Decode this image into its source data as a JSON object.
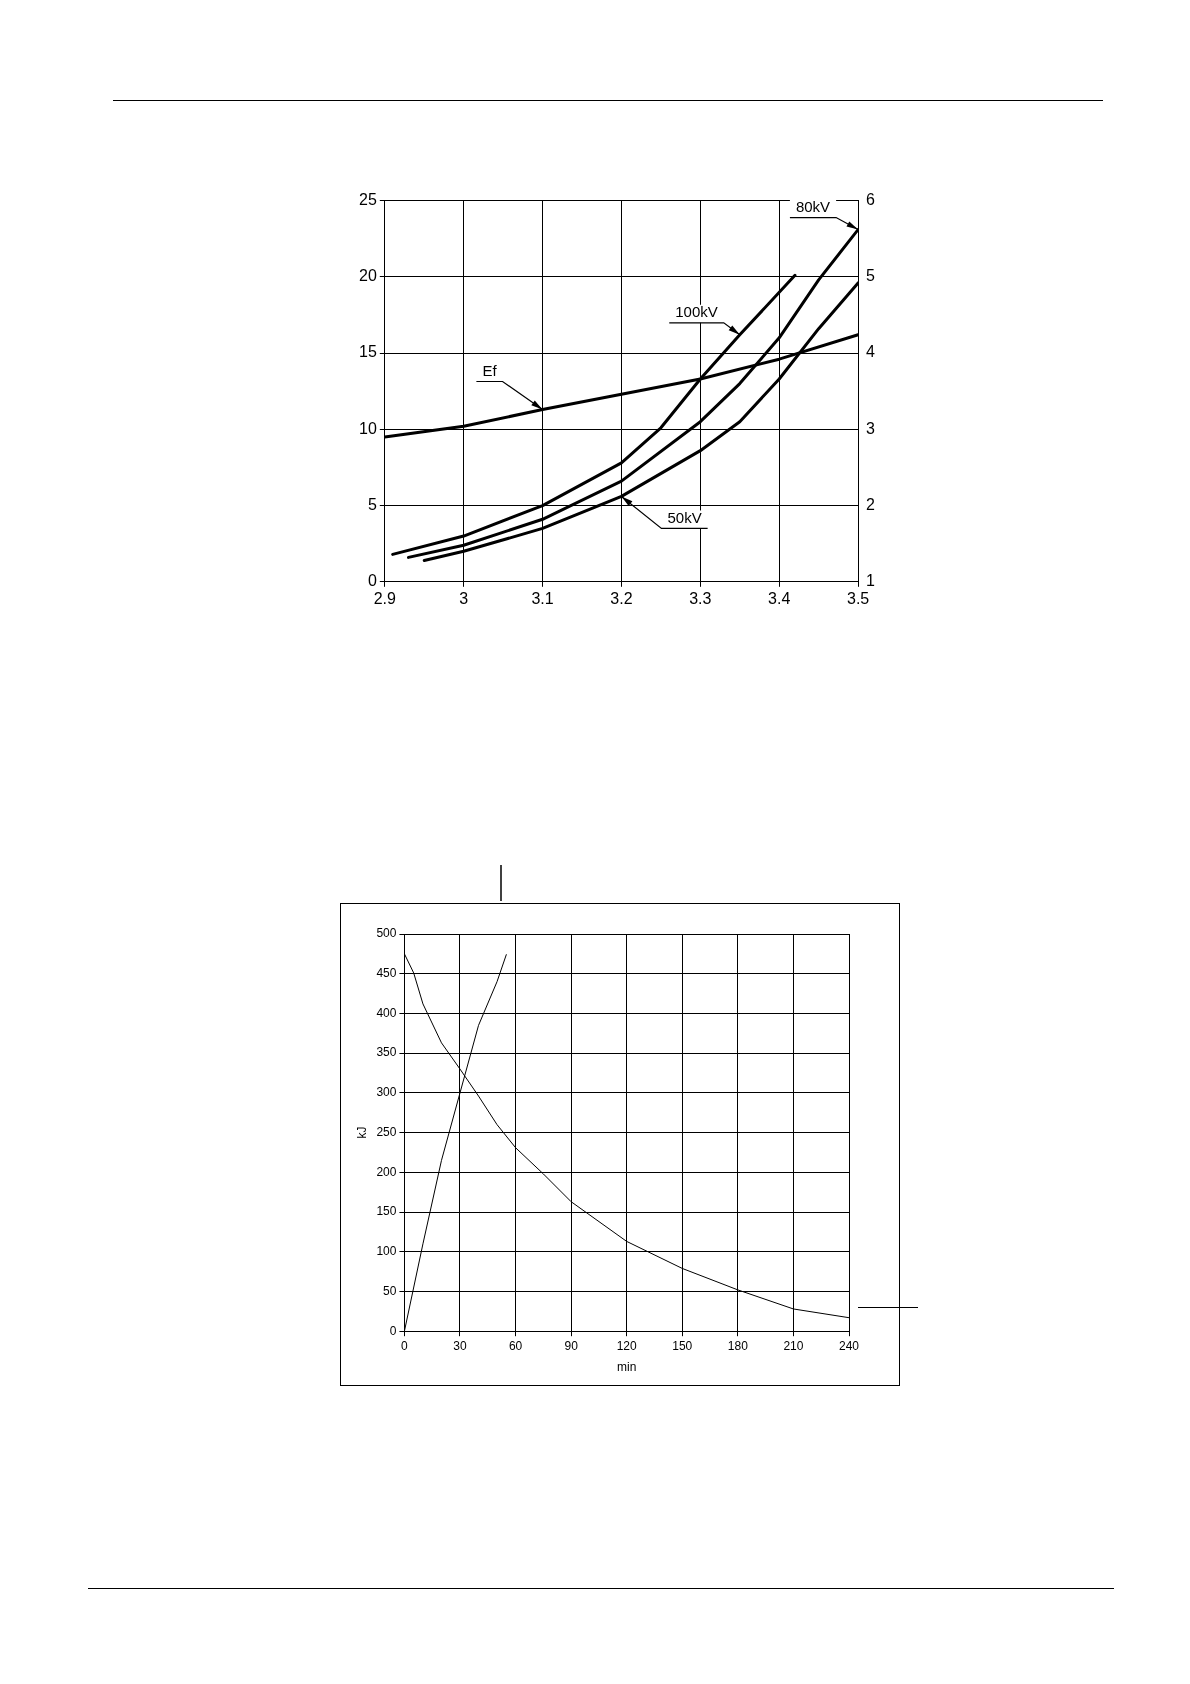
{
  "chart_data": [
    {
      "type": "line",
      "xlim": [
        2.9,
        3.5
      ],
      "xticks": [
        2.9,
        3.0,
        3.1,
        3.2,
        3.3,
        3.4,
        3.5
      ],
      "ylim": [
        0,
        25
      ],
      "yticks": [
        0,
        5,
        10,
        15,
        20,
        25
      ],
      "y2lim": [
        1,
        6
      ],
      "y2ticks": [
        1,
        2,
        3,
        4,
        5,
        6
      ],
      "grid": true,
      "legend": false,
      "marker": "none",
      "line_style": "solid",
      "series": [
        {
          "name": "Ef",
          "color": "#000000",
          "x": [
            2.9,
            3.0,
            3.1,
            3.2,
            3.3,
            3.4,
            3.5
          ],
          "values": [
            9.5,
            10.2,
            11.3,
            12.3,
            13.3,
            14.6,
            16.2
          ]
        },
        {
          "name": "100kV",
          "color": "#000000",
          "x": [
            2.91,
            3.0,
            3.1,
            3.2,
            3.25,
            3.3,
            3.35,
            3.42
          ],
          "values": [
            1.8,
            3.0,
            5.0,
            7.8,
            10.1,
            13.3,
            16.2,
            20.1
          ]
        },
        {
          "name": "80kV",
          "color": "#000000",
          "x": [
            2.93,
            3.0,
            3.1,
            3.2,
            3.3,
            3.35,
            3.4,
            3.45,
            3.5
          ],
          "values": [
            1.6,
            2.4,
            4.1,
            6.6,
            10.5,
            13.0,
            16.0,
            19.8,
            23.1
          ]
        },
        {
          "name": "50kV",
          "color": "#000000",
          "x": [
            2.95,
            3.0,
            3.1,
            3.2,
            3.3,
            3.35,
            3.4,
            3.45,
            3.5
          ],
          "values": [
            1.4,
            2.0,
            3.5,
            5.6,
            8.6,
            10.5,
            13.3,
            16.6,
            19.6
          ]
        }
      ]
    },
    {
      "type": "line",
      "xlabel": "min",
      "ylabel": "kJ",
      "xlim": [
        0,
        240
      ],
      "xticks": [
        0,
        30,
        60,
        90,
        120,
        150,
        180,
        210,
        240
      ],
      "ylim": [
        0,
        500
      ],
      "yticks": [
        0,
        50,
        100,
        150,
        200,
        250,
        300,
        350,
        400,
        450,
        500
      ],
      "grid": true,
      "legend": false,
      "marker": "none",
      "line_style": "solid",
      "series": [
        {
          "color": "#000000",
          "x": [
            0,
            10,
            20,
            30,
            40,
            50,
            55
          ],
          "values": [
            0,
            110,
            215,
            300,
            385,
            440,
            474
          ]
        },
        {
          "color": "#000000",
          "x": [
            0,
            5,
            10,
            20,
            30,
            40,
            50,
            60,
            75,
            90,
            120,
            150,
            180,
            210,
            240
          ],
          "values": [
            475,
            451,
            412,
            363,
            330,
            296,
            260,
            231,
            198,
            163,
            113,
            79,
            52,
            28,
            17
          ]
        }
      ]
    }
  ]
}
